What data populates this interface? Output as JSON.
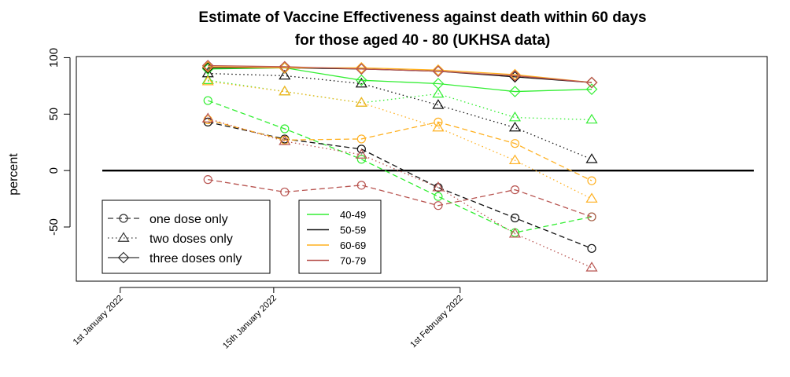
{
  "chart_data": {
    "type": "line",
    "title_line1": "Estimate of Vaccine Effectiveness against death within 60 days",
    "title_line2": "for those aged 40 - 80 (UKHSA data)",
    "ylabel": "percent",
    "xlabel": "",
    "ylim": [
      -98,
      101
    ],
    "xlim": [
      "2021-12-28",
      "2022-03-01"
    ],
    "yticks": [
      -50,
      0,
      50,
      100
    ],
    "xticks": [
      {
        "date": "2022-01-01",
        "label": "1st January 2022"
      },
      {
        "date": "2022-01-15",
        "label": "15th January 2022"
      },
      {
        "date": "2022-02-01",
        "label": "1st February 2022"
      }
    ],
    "x": [
      "2022-01-09",
      "2022-01-16",
      "2022-01-23",
      "2022-01-30",
      "2022-02-06",
      "2022-02-13"
    ],
    "reference_line_y": 0,
    "grid": false,
    "age_colors": {
      "40-49": "#33ee33",
      "50-59": "#111111",
      "60-69": "#ffb01f",
      "70-79": "#b85450"
    },
    "legend_doses": {
      "placement": "bottom-left",
      "entries": [
        {
          "label": "one dose only",
          "marker": "circle",
          "line": "dashed"
        },
        {
          "label": "two doses only",
          "marker": "triangle",
          "line": "dotted"
        },
        {
          "label": "three doses only",
          "marker": "diamond",
          "line": "solid"
        }
      ]
    },
    "legend_ages": {
      "placement": "bottom-center",
      "entries": [
        "40-49",
        "50-59",
        "60-69",
        "70-79"
      ]
    },
    "series": [
      {
        "age": "40-49",
        "dose": "one dose only",
        "values": [
          62,
          37,
          10,
          -23,
          -55,
          -41
        ]
      },
      {
        "age": "50-59",
        "dose": "one dose only",
        "values": [
          43,
          28,
          19,
          -15,
          -42,
          -69
        ]
      },
      {
        "age": "60-69",
        "dose": "one dose only",
        "values": [
          45,
          27,
          28,
          43,
          24,
          -9
        ]
      },
      {
        "age": "70-79",
        "dose": "one dose only",
        "values": [
          -8,
          -19,
          -13,
          -31,
          -17,
          -41
        ]
      },
      {
        "age": "40-49",
        "dose": "two doses only",
        "values": [
          80,
          70,
          60,
          68,
          47,
          45
        ]
      },
      {
        "age": "50-59",
        "dose": "two doses only",
        "values": [
          86,
          84,
          77,
          58,
          38,
          10
        ]
      },
      {
        "age": "60-69",
        "dose": "two doses only",
        "values": [
          79,
          70,
          60,
          38,
          9,
          -25
        ]
      },
      {
        "age": "70-79",
        "dose": "two doses only",
        "values": [
          46,
          26,
          14,
          -15,
          -56,
          -86
        ]
      },
      {
        "age": "40-49",
        "dose": "three doses only",
        "values": [
          90,
          91,
          80,
          77,
          70,
          72
        ]
      },
      {
        "age": "50-59",
        "dose": "three doses only",
        "values": [
          91,
          91,
          90,
          88,
          83,
          78
        ]
      },
      {
        "age": "60-69",
        "dose": "three doses only",
        "values": [
          92,
          91,
          91,
          89,
          85,
          78
        ]
      },
      {
        "age": "70-79",
        "dose": "three doses only",
        "values": [
          93,
          92,
          90,
          88,
          84,
          78
        ]
      }
    ]
  }
}
